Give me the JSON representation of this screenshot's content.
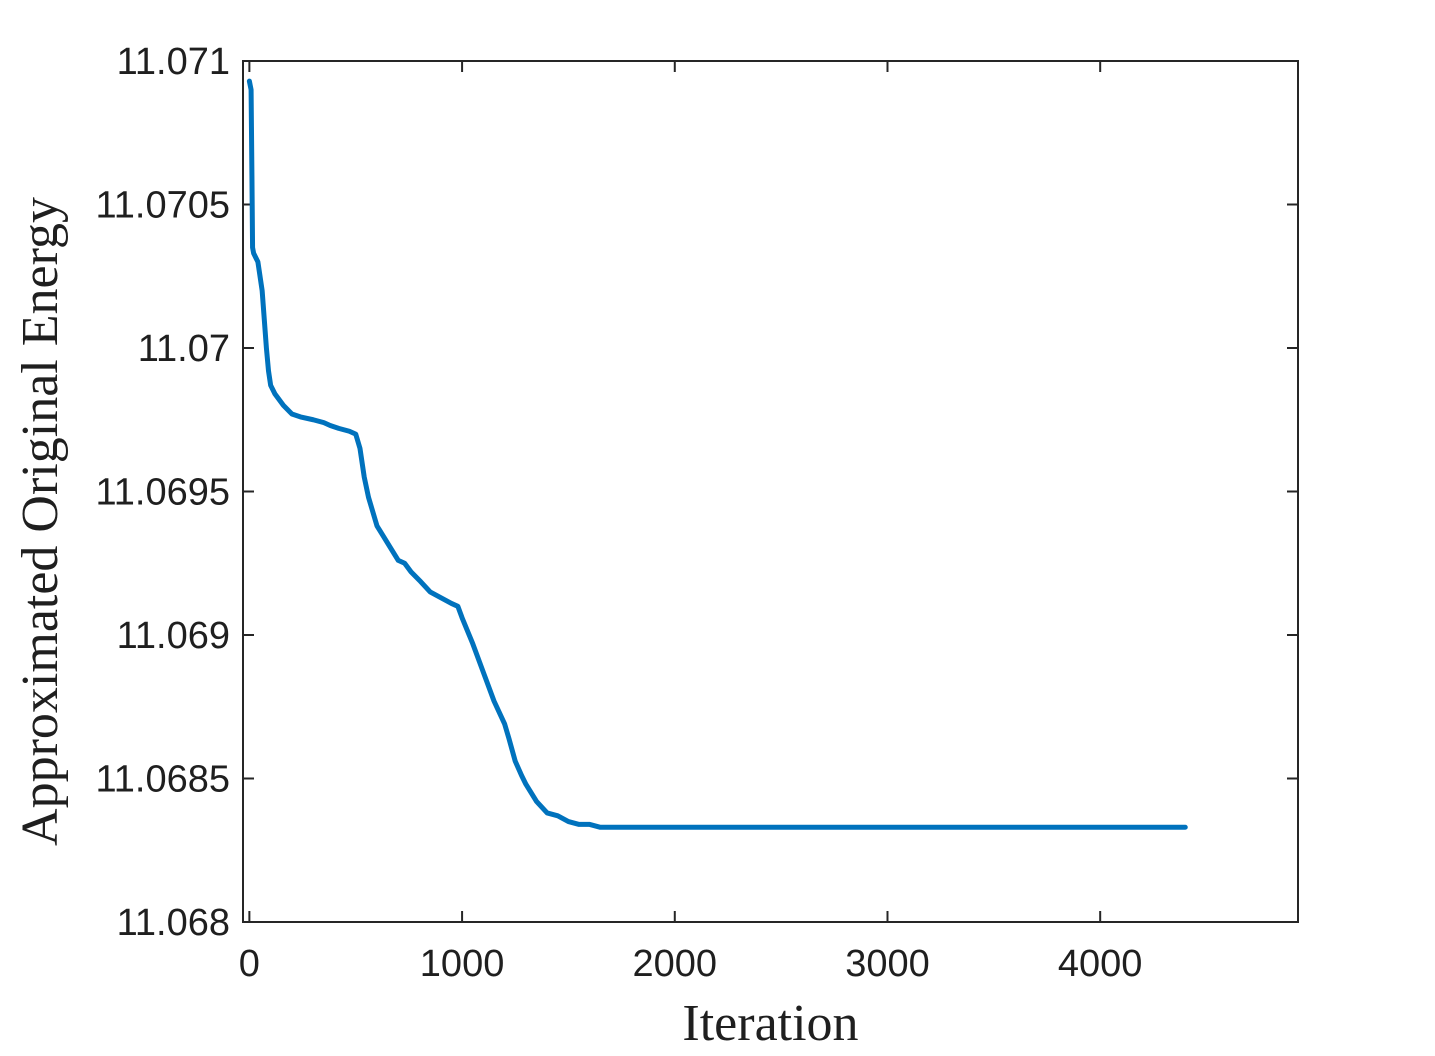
{
  "chart_data": {
    "type": "line",
    "title": "",
    "xlabel": "Iteration",
    "ylabel": "Approximated Original Energy",
    "xlim": [
      -30,
      4930
    ],
    "ylim": [
      11.068,
      11.071
    ],
    "x_ticks": [
      0,
      1000,
      2000,
      3000,
      4000
    ],
    "x_tick_labels": [
      "0",
      "1000",
      "2000",
      "3000",
      "4000"
    ],
    "y_ticks": [
      11.068,
      11.0685,
      11.069,
      11.0695,
      11.07,
      11.0705,
      11.071
    ],
    "y_tick_labels": [
      "11.068",
      "11.0685",
      "11.069",
      "11.0695",
      "11.07",
      "11.0705",
      "11.071"
    ],
    "grid": false,
    "legend": false,
    "colors": {
      "line": "#0072BD",
      "axis": "#262626",
      "text": "#1f1f1f",
      "background": "#ffffff"
    },
    "series": [
      {
        "color": "#0072BD",
        "x": [
          0,
          8,
          12,
          15,
          20,
          40,
          60,
          80,
          90,
          100,
          120,
          140,
          160,
          200,
          240,
          300,
          350,
          380,
          420,
          470,
          500,
          520,
          540,
          560,
          600,
          650,
          700,
          730,
          760,
          800,
          850,
          900,
          950,
          980,
          1000,
          1050,
          1100,
          1150,
          1200,
          1220,
          1250,
          1280,
          1300,
          1350,
          1400,
          1450,
          1500,
          1550,
          1600,
          1650,
          1700,
          1800,
          1900,
          2000,
          2500,
          3000,
          3500,
          4000,
          4400
        ],
        "y": [
          11.07093,
          11.0709,
          11.0706,
          11.07035,
          11.07033,
          11.0703,
          11.0702,
          11.07,
          11.06992,
          11.06987,
          11.06984,
          11.06982,
          11.0698,
          11.06977,
          11.06976,
          11.06975,
          11.06974,
          11.06973,
          11.06972,
          11.06971,
          11.0697,
          11.06965,
          11.06955,
          11.06948,
          11.06938,
          11.06932,
          11.06926,
          11.06925,
          11.06922,
          11.06919,
          11.06915,
          11.06913,
          11.06911,
          11.0691,
          11.06906,
          11.06897,
          11.06887,
          11.06877,
          11.06869,
          11.06864,
          11.06856,
          11.06851,
          11.06848,
          11.06842,
          11.06838,
          11.06837,
          11.06835,
          11.06834,
          11.06834,
          11.06833,
          11.06833,
          11.06833,
          11.06833,
          11.06833,
          11.06833,
          11.06833,
          11.06833,
          11.06833,
          11.06833
        ]
      }
    ]
  }
}
